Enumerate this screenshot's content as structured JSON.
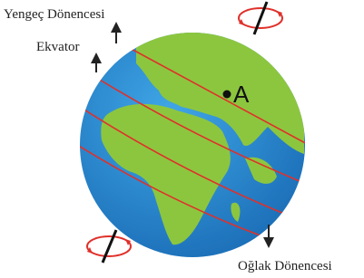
{
  "labels": {
    "tropic_of_cancer": "Yengeç Dönencesi",
    "equator": "Ekvator",
    "point": "A",
    "tropic_of_capricorn": "Oğlak Dönencesi"
  }
}
